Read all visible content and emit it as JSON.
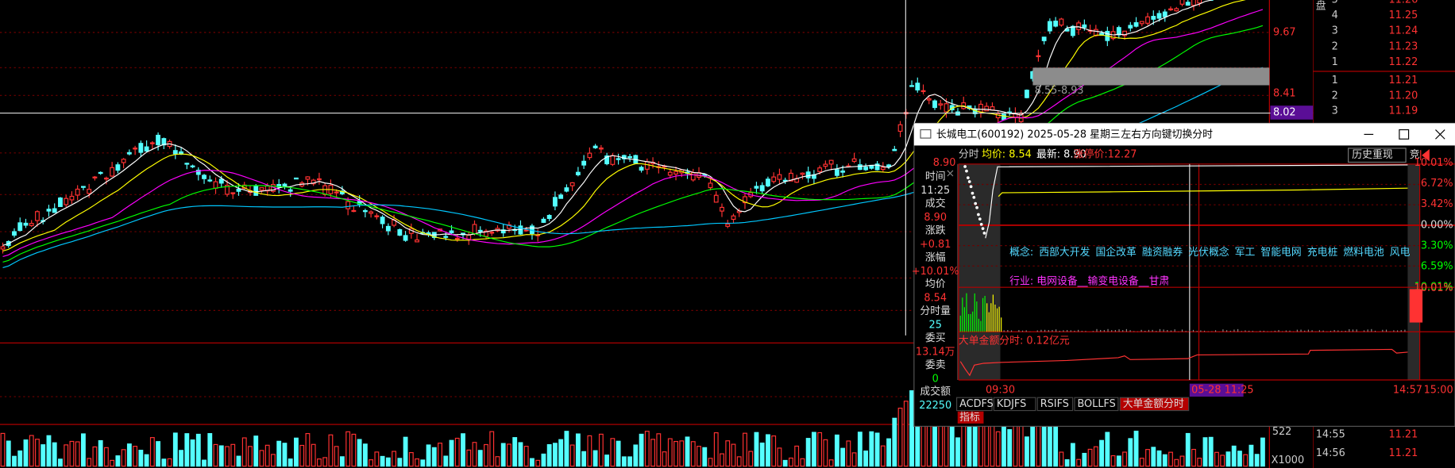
{
  "order_book": {
    "label": "盘",
    "asks": [
      {
        "level": "5",
        "price": "11.26"
      },
      {
        "level": "4",
        "price": "11.25"
      },
      {
        "level": "3",
        "price": "11.24"
      },
      {
        "level": "2",
        "price": "11.23"
      },
      {
        "level": "1",
        "price": "11.22"
      }
    ],
    "bids": [
      {
        "level": "1",
        "price": "11.21"
      },
      {
        "level": "2",
        "price": "11.20"
      },
      {
        "level": "3",
        "price": "11.19"
      }
    ],
    "ticks": [
      {
        "time": "14:55",
        "price": "11.21"
      },
      {
        "time": "14:56",
        "price": "11.21"
      }
    ]
  },
  "main_chart": {
    "price_labels": [
      "9.67",
      "8.41"
    ],
    "crosshair_price": "8.02",
    "zone_label": "8.55-8.93",
    "volume_label": "522",
    "volume_unit": "X1000"
  },
  "popup": {
    "title": "长城电工(600192) 2025-05-28 星期三",
    "hint": "左右方向键切换分时",
    "header": {
      "mode": "分时",
      "avg": "均价: 8.54",
      "latest": "最新: 8.90",
      "limit": "涨停价:12.27",
      "replay": "历史重现",
      "auction": "竞"
    },
    "cursor_price": "8.90",
    "info": [
      {
        "label": "时间",
        "value": "11:25"
      },
      {
        "label": "成交",
        "value": "8.90"
      },
      {
        "label": "涨跌",
        "value": "+0.81"
      },
      {
        "label": "涨幅",
        "value": "+10.01%"
      },
      {
        "label": "均价",
        "value": "8.54"
      },
      {
        "label": "分时量",
        "value": "25"
      },
      {
        "label": "委买",
        "value": "13.14万"
      },
      {
        "label": "委卖",
        "value": "0"
      },
      {
        "label": "成交额",
        "value": "22250"
      }
    ],
    "axis_right": [
      "10.01%",
      "6.72%",
      "3.42%",
      "0.00%",
      "3.30%",
      "6.59%",
      "10.01%"
    ],
    "volume_axis": "10.01%",
    "concepts_label": "概念:",
    "concepts": [
      "西部大开发",
      "国企改革",
      "融资融券",
      "光伏概念",
      "军工",
      "智能电网",
      "充电桩",
      "燃料电池",
      "风电"
    ],
    "industry": "行业: 电网设备__输变电设备__甘肃",
    "big_order": "大单金额分时: 0.12亿元",
    "x_axis": [
      "09:30",
      "14:57",
      "15:00"
    ],
    "cursor_time": "05-28 11:25",
    "tabs": [
      "ACDFS",
      "KDJFS",
      "RSIFS",
      "BOLLFS",
      "大单金额分时"
    ],
    "indicator": "指标"
  }
}
